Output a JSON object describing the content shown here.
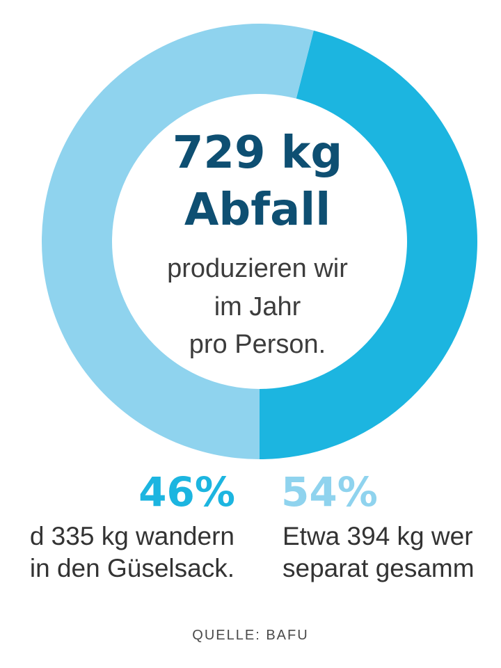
{
  "chart_data": {
    "type": "pie",
    "variant": "donut",
    "center": {
      "line1": "729 kg",
      "line2": "Abfall",
      "line3": "produzieren wir",
      "line4": "im Jahr",
      "line5": "pro Person."
    },
    "slices": [
      {
        "percent": 46,
        "percent_label": "46%",
        "kg": 335,
        "color": "#1cb5e0",
        "desc1": "d 335 kg wandern",
        "desc2": "in den Güselsack."
      },
      {
        "percent": 54,
        "percent_label": "54%",
        "kg": 394,
        "color": "#8fd3ee",
        "desc1": "Etwa 394 kg wer",
        "desc2": "separat gesamm"
      }
    ],
    "source": "QUELLE: BAFU"
  },
  "colors": {
    "headline": "#0e4f72",
    "text": "#3c3c3c",
    "background": "#ffffff"
  }
}
